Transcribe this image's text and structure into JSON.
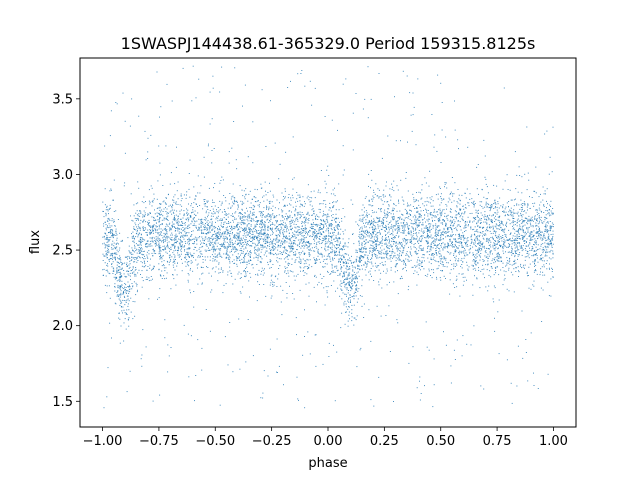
{
  "chart_data": {
    "type": "scatter",
    "title": "1SWASPJ144438.61-365329.0 Period 159315.8125s",
    "xlabel": "phase",
    "ylabel": "flux",
    "xlim": [
      -1.1,
      1.1
    ],
    "ylim": [
      1.33,
      3.77
    ],
    "grid": false,
    "legend": "none",
    "marker_color": "#1f77b4",
    "x_ticks": [
      {
        "value": -1.0,
        "label": "−1.00"
      },
      {
        "value": -0.75,
        "label": "−0.75"
      },
      {
        "value": -0.5,
        "label": "−0.50"
      },
      {
        "value": -0.25,
        "label": "−0.25"
      },
      {
        "value": 0.0,
        "label": "0.00"
      },
      {
        "value": 0.25,
        "label": "0.25"
      },
      {
        "value": 0.5,
        "label": "0.50"
      },
      {
        "value": 0.75,
        "label": "0.75"
      },
      {
        "value": 1.0,
        "label": "1.00"
      }
    ],
    "y_ticks": [
      {
        "value": 1.5,
        "label": "1.5"
      },
      {
        "value": 2.0,
        "label": "2.0"
      },
      {
        "value": 2.5,
        "label": "2.5"
      },
      {
        "value": 3.0,
        "label": "3.0"
      },
      {
        "value": 3.5,
        "label": "3.5"
      }
    ],
    "baseline_flux": 2.6,
    "eclipses": [
      {
        "phase_center": -0.9,
        "min_flux": 2.25
      },
      {
        "phase_center": 0.1,
        "min_flux": 2.25
      }
    ],
    "phase_range": [
      -1.0,
      1.0
    ],
    "flux_range": [
      1.45,
      3.72
    ]
  }
}
